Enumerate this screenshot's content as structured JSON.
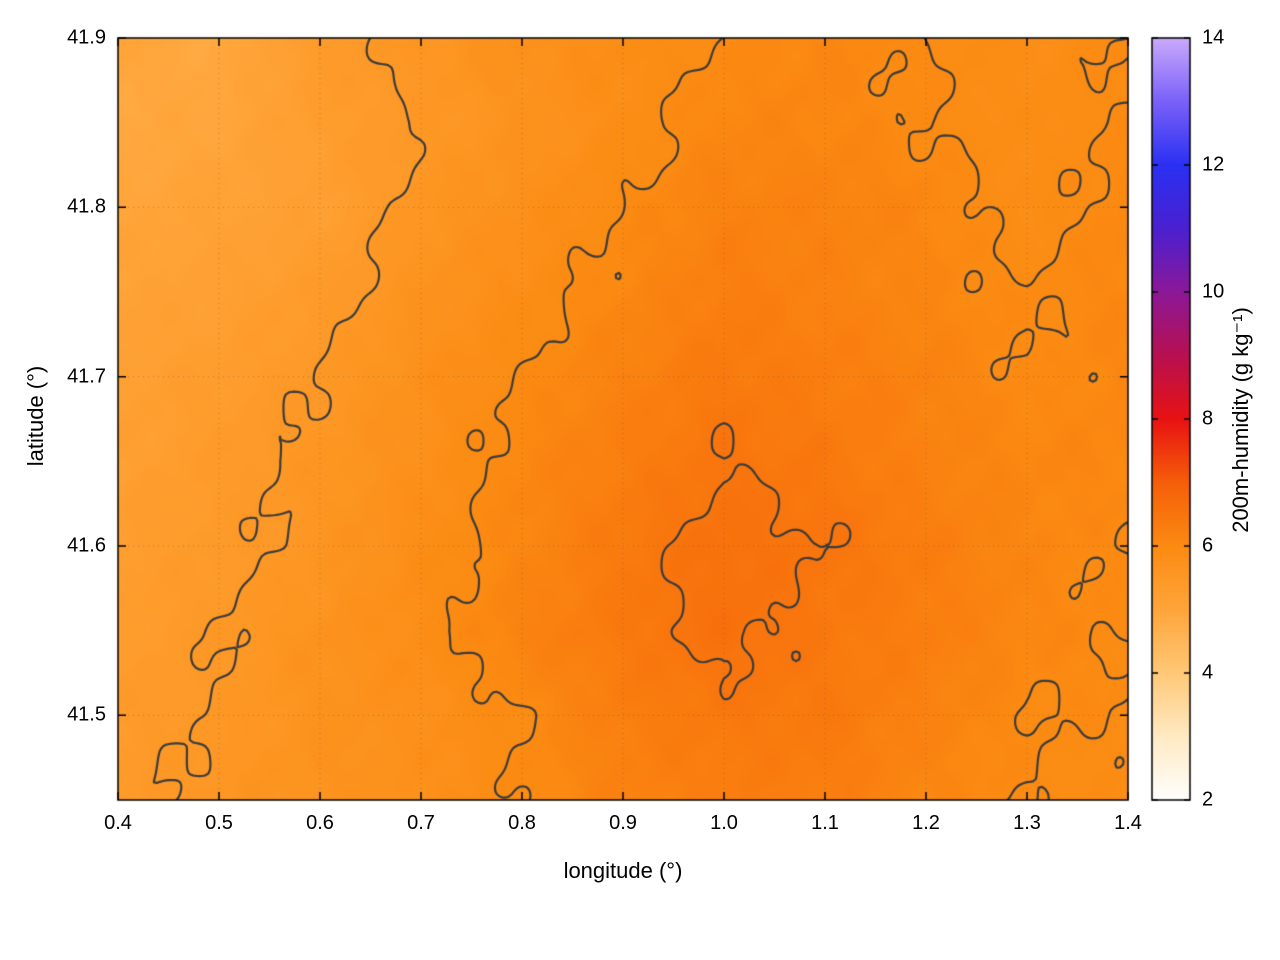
{
  "chart_data": {
    "type": "heatmap",
    "title": "",
    "xlabel": "longitude (°)",
    "ylabel": "latitude (°)",
    "xlim": [
      0.4,
      1.4
    ],
    "ylim": [
      41.45,
      41.9
    ],
    "x_ticks": [
      0.4,
      0.5,
      0.6,
      0.7,
      0.8,
      0.9,
      1.0,
      1.1,
      1.2,
      1.3,
      1.4
    ],
    "x_tick_labels": [
      "0.4",
      "0.5",
      "0.6",
      "0.7",
      "0.8",
      "0.9",
      "1.0",
      "1.1",
      "1.2",
      "1.3",
      "1.4"
    ],
    "y_ticks": [
      41.5,
      41.6,
      41.7,
      41.8,
      41.9
    ],
    "y_tick_labels": [
      "41.5",
      "41.6",
      "41.7",
      "41.8",
      "41.9"
    ],
    "grid_on": true,
    "contour_levels": [
      5.5,
      6.0,
      6.5
    ],
    "contour_color": "#3c3c3c",
    "colorbar": {
      "label": "200m-humidity (g kg⁻¹)",
      "range": [
        2,
        14
      ],
      "ticks": [
        2,
        4,
        6,
        8,
        10,
        12,
        14
      ],
      "tick_labels": [
        "2",
        "4",
        "6",
        "8",
        "10",
        "12",
        "14"
      ],
      "palette_stops": [
        [
          2.0,
          "#ffffff"
        ],
        [
          3.0,
          "#ffeac4"
        ],
        [
          4.0,
          "#ffc878"
        ],
        [
          5.0,
          "#ffa53a"
        ],
        [
          6.0,
          "#fb8b12"
        ],
        [
          7.0,
          "#f55f08"
        ],
        [
          8.0,
          "#e81212"
        ],
        [
          9.0,
          "#b81050"
        ],
        [
          10.0,
          "#8c1898"
        ],
        [
          11.0,
          "#4a20d0"
        ],
        [
          12.0,
          "#2a30f2"
        ],
        [
          13.0,
          "#7a60f8"
        ],
        [
          14.0,
          "#c9a9fc"
        ]
      ]
    },
    "grid": {
      "units": "g kg⁻¹",
      "lon": [
        0.4,
        0.5,
        0.6,
        0.7,
        0.8,
        0.9,
        1.0,
        1.1,
        1.2,
        1.3,
        1.4
      ],
      "lat": [
        41.9,
        41.85,
        41.8,
        41.75,
        41.7,
        41.65,
        41.6,
        41.55,
        41.5,
        41.45
      ],
      "values": [
        [
          5.0,
          4.9,
          5.4,
          5.6,
          5.8,
          5.9,
          6.0,
          6.1,
          6.0,
          5.9,
          6.0
        ],
        [
          4.9,
          5.0,
          5.3,
          5.5,
          5.7,
          5.9,
          6.1,
          6.1,
          6.0,
          5.9,
          6.0
        ],
        [
          5.0,
          5.1,
          5.2,
          5.6,
          5.8,
          6.0,
          6.2,
          6.2,
          6.1,
          5.9,
          6.1
        ],
        [
          5.1,
          5.2,
          5.4,
          5.7,
          5.9,
          6.1,
          6.3,
          6.2,
          6.1,
          6.0,
          6.1
        ],
        [
          5.2,
          5.3,
          5.5,
          5.8,
          6.0,
          6.2,
          6.4,
          6.3,
          6.2,
          6.0,
          6.1
        ],
        [
          5.2,
          5.4,
          5.6,
          5.8,
          6.1,
          6.3,
          6.5,
          6.4,
          6.2,
          6.1,
          6.1
        ],
        [
          5.3,
          5.4,
          5.6,
          5.9,
          6.1,
          6.4,
          6.6,
          6.5,
          6.3,
          6.1,
          6.0
        ],
        [
          5.3,
          5.5,
          5.7,
          5.9,
          6.2,
          6.4,
          6.6,
          6.4,
          6.3,
          6.1,
          6.0
        ],
        [
          5.4,
          5.5,
          5.7,
          5.8,
          6.0,
          6.3,
          6.4,
          6.4,
          6.2,
          6.0,
          6.0
        ],
        [
          5.4,
          5.6,
          5.7,
          5.8,
          6.0,
          6.2,
          6.3,
          6.3,
          6.1,
          6.0,
          5.9
        ]
      ]
    }
  }
}
